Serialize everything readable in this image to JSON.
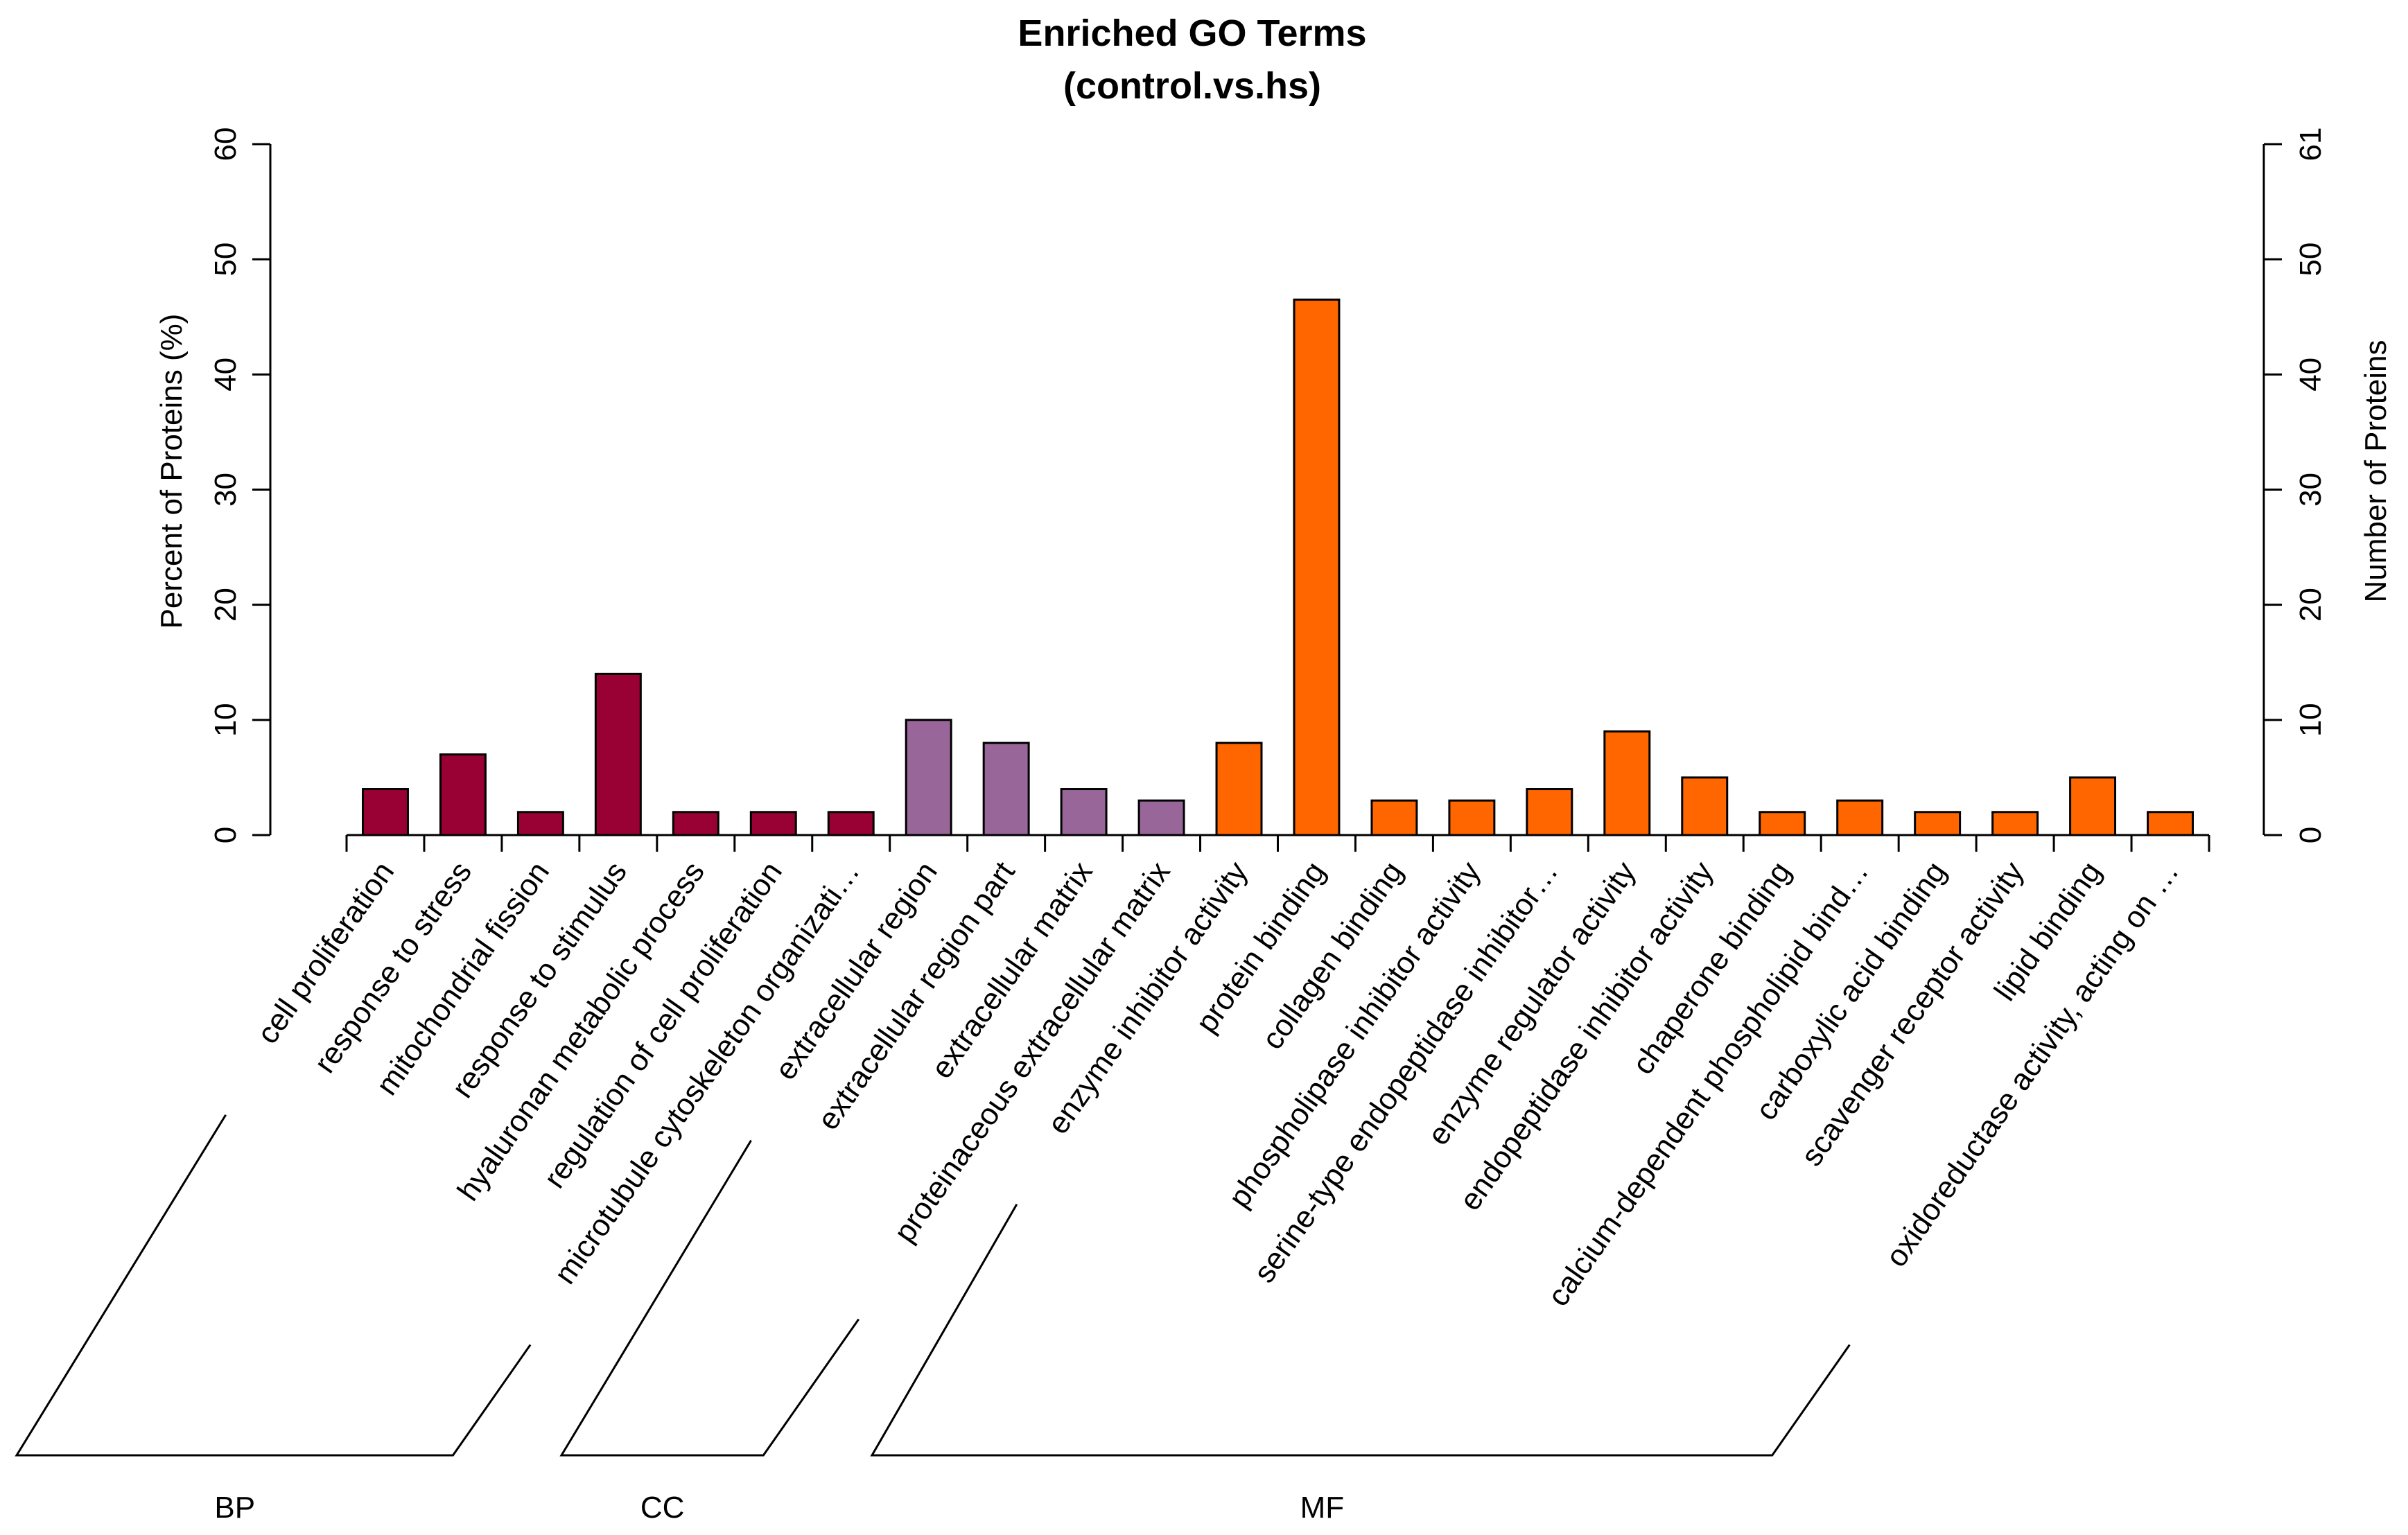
{
  "chart_data": {
    "type": "bar",
    "title": "Enriched GO Terms",
    "subtitle": "(control.vs.hs)",
    "ylabel_left": "Percent of Proteins (%)",
    "ylabel_right": "Number of Proteins",
    "ylim_left": [
      0,
      60
    ],
    "left_ticks": [
      0,
      10,
      20,
      30,
      40,
      50,
      60
    ],
    "right_ticks": [
      "0",
      "10",
      "20",
      "30",
      "40",
      "50",
      "61"
    ],
    "colors": {
      "BP": "#990033",
      "CC": "#996699",
      "MF": "#ff6600"
    },
    "groups": [
      {
        "name": "BP",
        "start": 0,
        "end": 6
      },
      {
        "name": "CC",
        "start": 7,
        "end": 10
      },
      {
        "name": "MF",
        "start": 11,
        "end": 23
      }
    ],
    "categories": [
      "cell proliferation",
      "response to stress",
      "mitochondrial fission",
      "response to stimulus",
      "hyaluronan metabolic process",
      "regulation of cell proliferation",
      "microtubule cytoskeleton organizati…",
      "extracellular region",
      "extracellular region part",
      "extracellular matrix",
      "proteinaceous extracellular matrix",
      "enzyme inhibitor activity",
      "protein binding",
      "collagen binding",
      "phospholipase inhibitor activity",
      "serine-type endopeptidase inhibitor…",
      "enzyme regulator activity",
      "endopeptidase inhibitor activity",
      "chaperone binding",
      "calcium-dependent phospholipid bind…",
      "carboxylic acid binding",
      "scavenger receptor activity",
      "lipid binding",
      "oxidoreductase activity, acting on …"
    ],
    "values": [
      4,
      7,
      2,
      14,
      2,
      2,
      2,
      10,
      8,
      4,
      3,
      8,
      46.5,
      3,
      3,
      4,
      9,
      5,
      2,
      3,
      2,
      2,
      5,
      2
    ],
    "category_groups": [
      "BP",
      "BP",
      "BP",
      "BP",
      "BP",
      "BP",
      "BP",
      "CC",
      "CC",
      "CC",
      "CC",
      "MF",
      "MF",
      "MF",
      "MF",
      "MF",
      "MF",
      "MF",
      "MF",
      "MF",
      "MF",
      "MF",
      "MF",
      "MF"
    ]
  }
}
